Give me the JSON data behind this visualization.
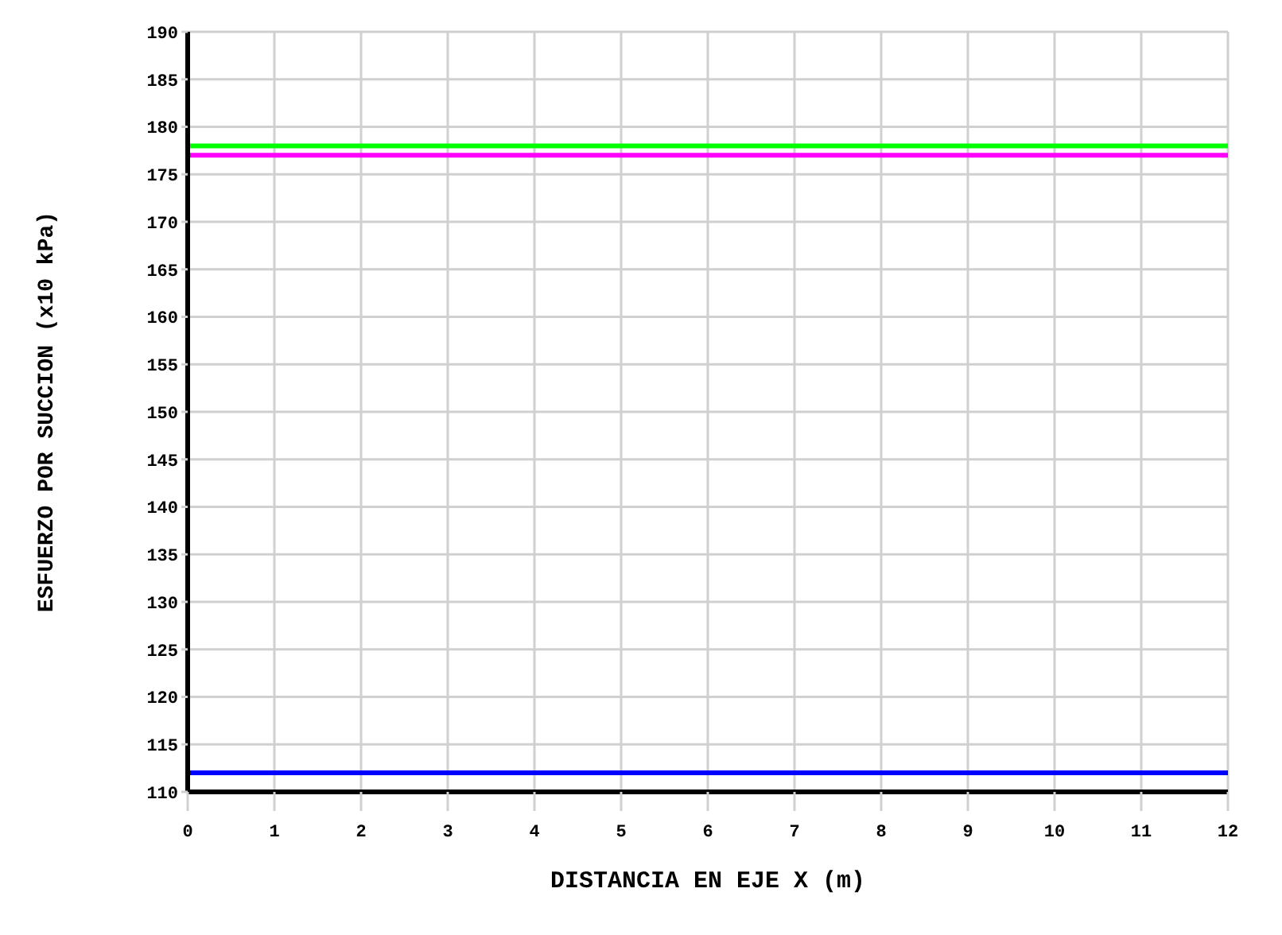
{
  "chart_data": {
    "type": "line",
    "xlabel": "DISTANCIA EN EJE X (m)",
    "ylabel": "ESFUERZO POR SUCCION (x10 kPa)",
    "x": [
      0,
      12
    ],
    "series": [
      {
        "color": "#00ff00",
        "values": [
          178,
          178
        ]
      },
      {
        "color": "#ff00ff",
        "values": [
          177,
          177
        ]
      },
      {
        "color": "#0000ff",
        "values": [
          112,
          112
        ]
      }
    ],
    "xlim": [
      0,
      12
    ],
    "xticks": [
      0,
      1,
      2,
      3,
      4,
      5,
      6,
      7,
      8,
      9,
      10,
      11,
      12
    ],
    "ylim": [
      110,
      190
    ],
    "yticks": [
      110,
      115,
      120,
      125,
      130,
      135,
      140,
      145,
      150,
      155,
      160,
      165,
      170,
      175,
      180,
      185,
      190
    ],
    "grid": true,
    "marker": "none",
    "line_style": "solid",
    "legend": false
  }
}
